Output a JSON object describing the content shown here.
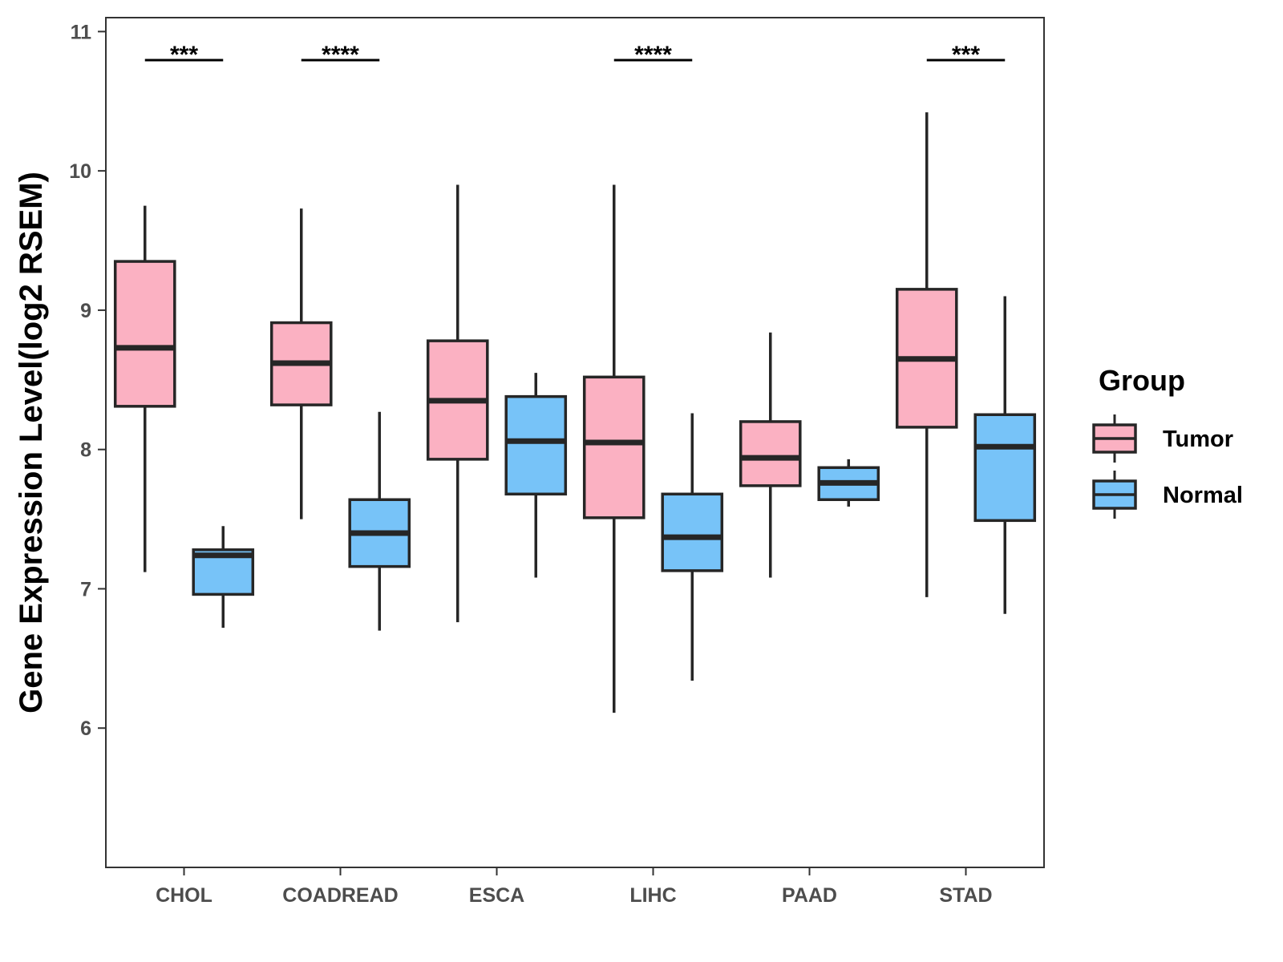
{
  "chart_data": {
    "type": "boxplot",
    "title": "",
    "xlabel": "",
    "ylabel": "Gene Expression Level(log2 RSEM)",
    "ylim": [
      5.0,
      11.1
    ],
    "yticks": [
      6,
      7,
      8,
      9,
      10,
      11
    ],
    "categories": [
      "CHOL",
      "COADREAD",
      "ESCA",
      "LIHC",
      "PAAD",
      "STAD"
    ],
    "legend": {
      "title": "Group",
      "position": "right"
    },
    "series": [
      {
        "name": "Tumor",
        "color": "#FBB1C2",
        "boxes": [
          {
            "min": 7.12,
            "q1": 8.31,
            "median": 8.73,
            "q3": 9.35,
            "max": 9.75
          },
          {
            "min": 7.5,
            "q1": 8.32,
            "median": 8.62,
            "q3": 8.91,
            "max": 9.73
          },
          {
            "min": 6.76,
            "q1": 7.93,
            "median": 8.35,
            "q3": 8.78,
            "max": 9.9
          },
          {
            "min": 6.11,
            "q1": 7.51,
            "median": 8.05,
            "q3": 8.52,
            "max": 9.9
          },
          {
            "min": 7.08,
            "q1": 7.74,
            "median": 7.94,
            "q3": 8.2,
            "max": 8.84
          },
          {
            "min": 6.94,
            "q1": 8.16,
            "median": 8.65,
            "q3": 9.15,
            "max": 10.42
          }
        ]
      },
      {
        "name": "Normal",
        "color": "#77C3F8",
        "boxes": [
          {
            "min": 6.72,
            "q1": 6.96,
            "median": 7.24,
            "q3": 7.28,
            "max": 7.45
          },
          {
            "min": 6.7,
            "q1": 7.16,
            "median": 7.4,
            "q3": 7.64,
            "max": 8.27
          },
          {
            "min": 7.08,
            "q1": 7.68,
            "median": 8.06,
            "q3": 8.38,
            "max": 8.55
          },
          {
            "min": 6.34,
            "q1": 7.13,
            "median": 7.37,
            "q3": 7.68,
            "max": 8.26
          },
          {
            "min": 7.59,
            "q1": 7.64,
            "median": 7.76,
            "q3": 7.87,
            "max": 7.93
          },
          {
            "min": 6.82,
            "q1": 7.49,
            "median": 8.02,
            "q3": 8.25,
            "max": 9.1
          }
        ]
      }
    ],
    "significance": [
      {
        "category": "CHOL",
        "label": "***"
      },
      {
        "category": "COADREAD",
        "label": "****"
      },
      {
        "category": "LIHC",
        "label": "****"
      },
      {
        "category": "STAD",
        "label": "***"
      }
    ]
  }
}
